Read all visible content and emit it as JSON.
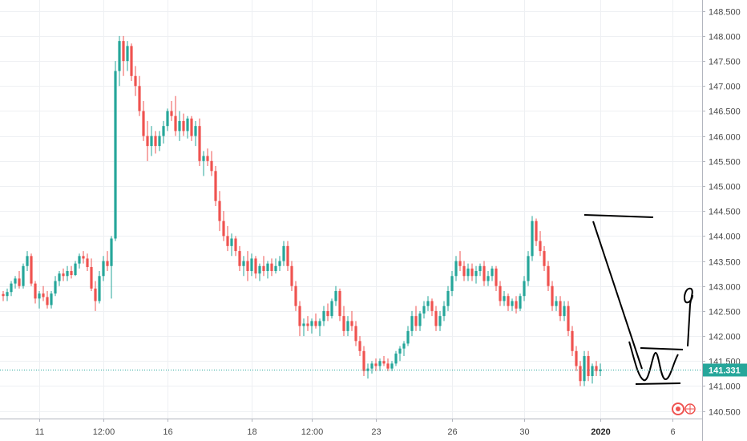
{
  "chart_data": {
    "type": "candlestick",
    "y_axis": {
      "ticks": [
        "140.500",
        "141.000",
        "141.500",
        "142.000",
        "142.500",
        "143.000",
        "143.500",
        "144.000",
        "144.500",
        "145.000",
        "145.500",
        "146.000",
        "146.500",
        "147.000",
        "147.500",
        "148.000",
        "148.500"
      ],
      "range": [
        140.35,
        148.72
      ]
    },
    "x_axis": {
      "ticks": [
        {
          "label": "11",
          "index": 9,
          "bold": false
        },
        {
          "label": "12:00",
          "index": 25,
          "bold": false
        },
        {
          "label": "16",
          "index": 41,
          "bold": false
        },
        {
          "label": "18",
          "index": 62,
          "bold": false
        },
        {
          "label": "12:00",
          "index": 77,
          "bold": false
        },
        {
          "label": "23",
          "index": 93,
          "bold": false
        },
        {
          "label": "26",
          "index": 112,
          "bold": false
        },
        {
          "label": "30",
          "index": 130,
          "bold": false
        },
        {
          "label": "2020",
          "index": 149,
          "bold": true
        },
        {
          "label": "6",
          "index": 167,
          "bold": false
        }
      ]
    },
    "current_price": {
      "label": "141.331",
      "value": 141.331
    },
    "colors": {
      "up": "#26a69a",
      "down": "#ef5350",
      "price_line": "#26a69a",
      "drawing": "#000000"
    },
    "candles": [
      [
        142.84,
        142.9,
        142.7,
        142.8
      ],
      [
        142.8,
        142.95,
        142.7,
        142.88
      ],
      [
        142.88,
        143.1,
        142.8,
        143.05
      ],
      [
        143.05,
        143.2,
        142.95,
        143.15
      ],
      [
        143.15,
        143.3,
        142.95,
        143.0
      ],
      [
        143.0,
        143.45,
        142.95,
        143.4
      ],
      [
        143.4,
        143.7,
        143.3,
        143.6
      ],
      [
        143.6,
        143.65,
        143.0,
        143.05
      ],
      [
        143.05,
        143.1,
        142.65,
        142.75
      ],
      [
        142.75,
        142.9,
        142.55,
        142.85
      ],
      [
        142.85,
        143.0,
        142.7,
        142.78
      ],
      [
        142.78,
        142.9,
        142.55,
        142.62
      ],
      [
        142.62,
        142.9,
        142.55,
        142.85
      ],
      [
        142.85,
        143.2,
        142.8,
        143.1
      ],
      [
        143.1,
        143.3,
        143.0,
        143.25
      ],
      [
        143.25,
        143.35,
        143.1,
        143.2
      ],
      [
        143.2,
        143.4,
        143.1,
        143.3
      ],
      [
        143.3,
        143.4,
        143.15,
        143.22
      ],
      [
        143.22,
        143.5,
        143.2,
        143.45
      ],
      [
        143.45,
        143.65,
        143.35,
        143.6
      ],
      [
        143.6,
        143.7,
        143.45,
        143.55
      ],
      [
        143.55,
        143.65,
        143.3,
        143.38
      ],
      [
        143.38,
        143.55,
        142.9,
        142.95
      ],
      [
        142.95,
        143.1,
        142.5,
        142.7
      ],
      [
        142.7,
        143.3,
        142.65,
        143.2
      ],
      [
        143.2,
        143.6,
        143.1,
        143.5
      ],
      [
        143.5,
        143.7,
        143.3,
        143.4
      ],
      [
        143.4,
        144.0,
        142.75,
        143.95
      ],
      [
        143.95,
        147.5,
        143.9,
        147.3
      ],
      [
        147.3,
        148.0,
        147.0,
        147.9
      ],
      [
        147.9,
        148.0,
        147.2,
        147.5
      ],
      [
        147.5,
        147.9,
        147.3,
        147.8
      ],
      [
        147.8,
        147.85,
        147.1,
        147.2
      ],
      [
        147.2,
        147.4,
        146.8,
        147.0
      ],
      [
        147.0,
        147.2,
        146.4,
        146.5
      ],
      [
        146.5,
        146.7,
        145.9,
        146.0
      ],
      [
        146.0,
        146.3,
        145.5,
        145.8
      ],
      [
        145.8,
        146.2,
        145.6,
        146.0
      ],
      [
        146.0,
        146.1,
        145.65,
        145.8
      ],
      [
        145.8,
        146.1,
        145.7,
        146.0
      ],
      [
        146.0,
        146.3,
        145.85,
        146.2
      ],
      [
        146.2,
        146.55,
        146.1,
        146.5
      ],
      [
        146.5,
        146.7,
        146.3,
        146.4
      ],
      [
        146.4,
        146.8,
        146.0,
        146.1
      ],
      [
        146.1,
        146.5,
        145.9,
        146.3
      ],
      [
        146.3,
        146.45,
        146.0,
        146.1
      ],
      [
        146.1,
        146.4,
        145.95,
        146.35
      ],
      [
        146.35,
        146.4,
        145.9,
        146.0
      ],
      [
        146.0,
        146.3,
        145.8,
        146.2
      ],
      [
        146.2,
        146.35,
        145.4,
        145.5
      ],
      [
        145.5,
        145.7,
        145.2,
        145.6
      ],
      [
        145.6,
        145.75,
        145.4,
        145.5
      ],
      [
        145.5,
        145.7,
        145.2,
        145.3
      ],
      [
        145.3,
        145.4,
        144.6,
        144.7
      ],
      [
        144.7,
        144.9,
        144.1,
        144.3
      ],
      [
        144.3,
        144.5,
        143.9,
        144.0
      ],
      [
        144.0,
        144.2,
        143.7,
        143.8
      ],
      [
        143.8,
        144.05,
        143.6,
        143.95
      ],
      [
        143.95,
        144.0,
        143.6,
        143.7
      ],
      [
        143.7,
        143.8,
        143.3,
        143.4
      ],
      [
        143.4,
        143.6,
        143.2,
        143.5
      ],
      [
        143.5,
        143.7,
        143.1,
        143.3
      ],
      [
        143.3,
        143.65,
        143.2,
        143.55
      ],
      [
        143.55,
        143.6,
        143.15,
        143.25
      ],
      [
        143.25,
        143.45,
        143.1,
        143.4
      ],
      [
        143.4,
        143.6,
        143.2,
        143.3
      ],
      [
        143.3,
        143.5,
        143.15,
        143.45
      ],
      [
        143.45,
        143.55,
        143.2,
        143.3
      ],
      [
        143.3,
        143.55,
        143.25,
        143.4
      ],
      [
        143.4,
        143.6,
        143.3,
        143.5
      ],
      [
        143.5,
        143.9,
        143.4,
        143.8
      ],
      [
        143.8,
        143.9,
        143.3,
        143.4
      ],
      [
        143.4,
        143.5,
        142.9,
        143.0
      ],
      [
        143.0,
        143.1,
        142.5,
        142.6
      ],
      [
        142.6,
        142.7,
        142.0,
        142.2
      ],
      [
        142.2,
        142.35,
        142.0,
        142.25
      ],
      [
        142.25,
        142.4,
        142.1,
        142.2
      ],
      [
        142.2,
        142.35,
        142.05,
        142.3
      ],
      [
        142.3,
        142.45,
        142.15,
        142.2
      ],
      [
        142.2,
        142.35,
        142.0,
        142.3
      ],
      [
        142.3,
        142.6,
        142.2,
        142.5
      ],
      [
        142.5,
        142.65,
        142.3,
        142.4
      ],
      [
        142.4,
        142.75,
        142.35,
        142.7
      ],
      [
        142.7,
        143.0,
        142.6,
        142.9
      ],
      [
        142.9,
        142.95,
        142.3,
        142.4
      ],
      [
        142.4,
        142.6,
        142.0,
        142.1
      ],
      [
        142.1,
        142.4,
        142.0,
        142.3
      ],
      [
        142.3,
        142.5,
        142.1,
        142.2
      ],
      [
        142.2,
        142.3,
        141.8,
        141.9
      ],
      [
        141.9,
        142.0,
        141.6,
        141.7
      ],
      [
        141.7,
        141.8,
        141.2,
        141.3
      ],
      [
        141.3,
        141.45,
        141.15,
        141.35
      ],
      [
        141.35,
        141.5,
        141.25,
        141.45
      ],
      [
        141.45,
        141.55,
        141.3,
        141.4
      ],
      [
        141.4,
        141.55,
        141.3,
        141.5
      ],
      [
        141.5,
        141.6,
        141.4,
        141.45
      ],
      [
        141.45,
        141.55,
        141.3,
        141.35
      ],
      [
        141.35,
        141.5,
        141.3,
        141.45
      ],
      [
        141.45,
        141.7,
        141.4,
        141.65
      ],
      [
        141.65,
        141.8,
        141.5,
        141.75
      ],
      [
        141.75,
        141.9,
        141.6,
        141.85
      ],
      [
        141.85,
        142.2,
        141.8,
        142.1
      ],
      [
        142.1,
        142.5,
        142.0,
        142.4
      ],
      [
        142.4,
        142.6,
        142.1,
        142.2
      ],
      [
        142.2,
        142.5,
        142.1,
        142.45
      ],
      [
        142.45,
        142.7,
        142.35,
        142.6
      ],
      [
        142.6,
        142.8,
        142.5,
        142.7
      ],
      [
        142.7,
        142.75,
        142.4,
        142.5
      ],
      [
        142.5,
        142.6,
        142.1,
        142.2
      ],
      [
        142.2,
        142.5,
        142.1,
        142.4
      ],
      [
        142.4,
        142.7,
        142.3,
        142.6
      ],
      [
        142.6,
        143.0,
        142.5,
        142.9
      ],
      [
        142.9,
        143.3,
        142.8,
        143.2
      ],
      [
        143.2,
        143.6,
        143.1,
        143.5
      ],
      [
        143.5,
        143.7,
        143.3,
        143.4
      ],
      [
        143.4,
        143.5,
        143.1,
        143.2
      ],
      [
        143.2,
        143.45,
        143.1,
        143.35
      ],
      [
        143.35,
        143.45,
        143.1,
        143.2
      ],
      [
        143.2,
        143.4,
        143.05,
        143.3
      ],
      [
        143.3,
        143.45,
        143.2,
        143.4
      ],
      [
        143.4,
        143.5,
        143.0,
        143.1
      ],
      [
        143.1,
        143.3,
        143.0,
        143.2
      ],
      [
        143.2,
        143.4,
        143.1,
        143.35
      ],
      [
        143.35,
        143.4,
        142.9,
        143.0
      ],
      [
        143.0,
        143.1,
        142.6,
        142.7
      ],
      [
        142.7,
        142.9,
        142.6,
        142.8
      ],
      [
        142.8,
        142.85,
        142.5,
        142.6
      ],
      [
        142.6,
        142.75,
        142.5,
        142.7
      ],
      [
        142.7,
        142.8,
        142.45,
        142.55
      ],
      [
        142.55,
        142.85,
        142.5,
        142.8
      ],
      [
        142.8,
        143.2,
        142.7,
        143.1
      ],
      [
        143.1,
        143.7,
        143.0,
        143.6
      ],
      [
        143.6,
        144.4,
        143.5,
        144.3
      ],
      [
        144.3,
        144.35,
        143.8,
        143.9
      ],
      [
        143.9,
        144.1,
        143.6,
        143.7
      ],
      [
        143.7,
        143.8,
        143.3,
        143.4
      ],
      [
        143.4,
        143.5,
        142.9,
        143.0
      ],
      [
        143.0,
        143.1,
        142.5,
        142.6
      ],
      [
        142.6,
        142.8,
        142.5,
        142.7
      ],
      [
        142.7,
        142.8,
        142.3,
        142.4
      ],
      [
        142.4,
        142.7,
        142.3,
        142.6
      ],
      [
        142.6,
        142.7,
        142.0,
        142.1
      ],
      [
        142.1,
        142.2,
        141.6,
        141.7
      ],
      [
        141.7,
        141.8,
        141.3,
        141.4
      ],
      [
        141.4,
        141.5,
        141.0,
        141.1
      ],
      [
        141.1,
        141.7,
        141.0,
        141.6
      ],
      [
        141.6,
        141.7,
        141.1,
        141.2
      ],
      [
        141.2,
        141.45,
        141.05,
        141.4
      ],
      [
        141.4,
        141.5,
        141.2,
        141.3
      ],
      [
        141.3,
        141.45,
        141.2,
        141.331
      ]
    ]
  }
}
